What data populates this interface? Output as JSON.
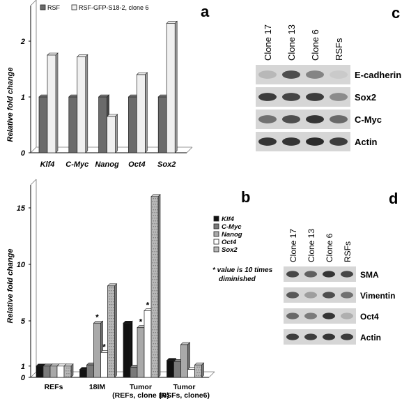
{
  "panel_letters": {
    "a": "a",
    "b": "b",
    "c": "c",
    "d": "d"
  },
  "chart_data": [
    {
      "panel": "a",
      "type": "bar",
      "ylabel": "Relative fold change",
      "ylim": [
        0,
        2.5
      ],
      "yticks": [
        0,
        1,
        2
      ],
      "grid": false,
      "legend_position": "top",
      "categories": [
        "Klf4",
        "C-Myc",
        "Nanog",
        "Oct4",
        "Sox2"
      ],
      "series": [
        {
          "name": "RSF",
          "values": [
            1.0,
            1.0,
            1.0,
            1.0,
            1.0
          ],
          "color": "#6b6b6b"
        },
        {
          "name": "RSF-GFP-S18-2, clone 6",
          "values": [
            1.75,
            1.72,
            0.65,
            1.4,
            2.32
          ],
          "color": "#f0f0f0"
        }
      ]
    },
    {
      "panel": "b",
      "type": "bar",
      "ylabel": "Relative fold change",
      "ylim": [
        0,
        17
      ],
      "yticks": [
        0,
        1,
        5,
        10,
        15
      ],
      "grid": false,
      "legend_position": "right",
      "note": "* value is 10 times diminished",
      "categories": [
        "REFs",
        "18IM",
        "Tumor\n(REFs, clone 10)",
        "Tumor\n(RSFs, clone6)"
      ],
      "series": [
        {
          "name": "Klf4",
          "values": [
            1.0,
            0.7,
            4.8,
            1.5
          ],
          "color": "#111111"
        },
        {
          "name": "C-Myc",
          "values": [
            1.0,
            1.1,
            0.9,
            1.4
          ],
          "color": "#7a7a7a"
        },
        {
          "name": "Nanog",
          "values": [
            1.0,
            4.8,
            4.4,
            2.9
          ],
          "color": "#a9a9a9"
        },
        {
          "name": "Oct4",
          "values": [
            1.0,
            2.2,
            5.9,
            0.7
          ],
          "color": "#ffffff"
        },
        {
          "name": "Sox2",
          "values": [
            1.0,
            8.1,
            16.0,
            1.1
          ],
          "color": "#b8b8b8"
        }
      ],
      "asterisks": [
        {
          "category": 1,
          "series": 2,
          "text": "*"
        },
        {
          "category": 1,
          "series": 3,
          "text": "*"
        },
        {
          "category": 2,
          "series": 2,
          "text": "*"
        },
        {
          "category": 2,
          "series": 3,
          "text": "*"
        }
      ]
    }
  ],
  "blot_c": {
    "lanes": [
      "Clone 17",
      "Clone 13",
      "Clone 6",
      "RSFs"
    ],
    "rows": [
      {
        "label": "E-cadherin",
        "intensities": [
          0.15,
          0.75,
          0.45,
          0.05
        ]
      },
      {
        "label": "Sox2",
        "intensities": [
          0.85,
          0.8,
          0.85,
          0.4
        ]
      },
      {
        "label": "C-Myc",
        "intensities": [
          0.55,
          0.75,
          0.9,
          0.6
        ]
      },
      {
        "label": "Actin",
        "intensities": [
          0.9,
          0.9,
          0.95,
          0.85
        ]
      }
    ]
  },
  "blot_d": {
    "lanes": [
      "Clone 17",
      "Clone 13",
      "Clone 6",
      "RSFs"
    ],
    "rows": [
      {
        "label": "SMA",
        "intensities": [
          0.8,
          0.65,
          0.9,
          0.8
        ]
      },
      {
        "label": "Vimentin",
        "intensities": [
          0.7,
          0.3,
          0.75,
          0.55
        ]
      },
      {
        "label": "Oct4",
        "intensities": [
          0.6,
          0.5,
          0.9,
          0.2
        ]
      },
      {
        "label": "Actin",
        "intensities": [
          0.85,
          0.85,
          0.9,
          0.85
        ]
      }
    ]
  }
}
